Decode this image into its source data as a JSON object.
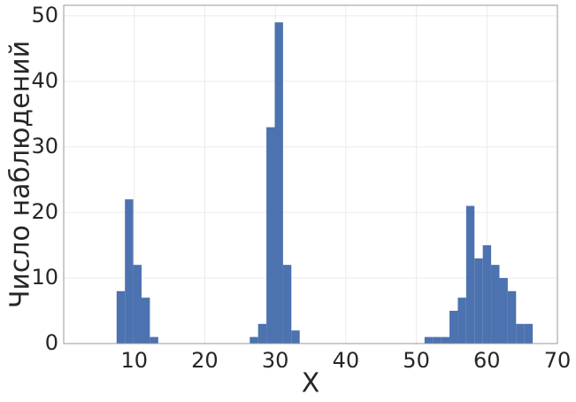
{
  "chart_data": {
    "type": "histogram",
    "x_label": "X",
    "y_label": "Число наблюдений",
    "bins": [
      7.5,
      8.68,
      9.86,
      11.04,
      12.22,
      13.4,
      14.58,
      15.76,
      16.94,
      18.12,
      19.3,
      20.48,
      21.66,
      22.84,
      24.02,
      25.2,
      26.38,
      27.56,
      28.74,
      29.92,
      31.1,
      32.28,
      33.46,
      34.64,
      35.82,
      37.0,
      38.18,
      39.36,
      40.54,
      41.72,
      42.9,
      44.08,
      45.26,
      46.44,
      47.62,
      48.8,
      49.98,
      51.16,
      52.34,
      53.52,
      54.7,
      55.88,
      57.06,
      58.24,
      59.42,
      60.6,
      61.78,
      62.96,
      64.14,
      65.32,
      66.5
    ],
    "values": [
      8,
      22,
      12,
      7,
      1,
      0,
      0,
      0,
      0,
      0,
      0,
      0,
      0,
      0,
      0,
      0,
      1,
      3,
      33,
      49,
      12,
      2,
      0,
      0,
      0,
      0,
      0,
      0,
      0,
      0,
      0,
      0,
      0,
      0,
      0,
      0,
      0,
      1,
      1,
      1,
      5,
      7,
      21,
      13,
      15,
      12,
      10,
      8,
      3,
      3
    ],
    "color": "#4c72b0",
    "xlim": [
      0,
      70
    ],
    "xticks": [
      10,
      20,
      30,
      40,
      50,
      60,
      70
    ],
    "ylim": [
      0,
      51.6
    ],
    "yticks": [
      0,
      10,
      20,
      30,
      40,
      50
    ],
    "grid": true
  }
}
